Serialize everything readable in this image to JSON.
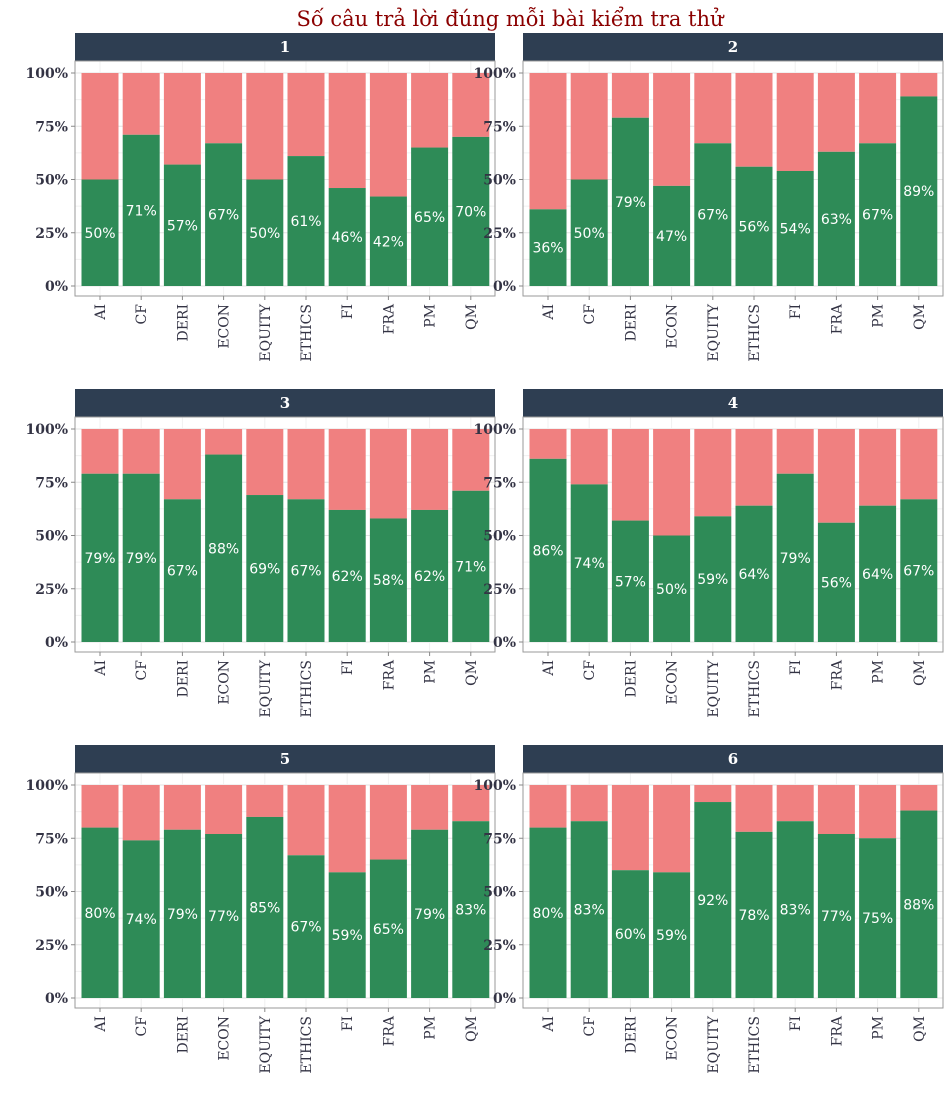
{
  "chart_data": {
    "type": "bar",
    "title": "Số câu trả lời đúng mỗi bài kiểm tra thử",
    "categories": [
      "AI",
      "CF",
      "DERI",
      "ECON",
      "EQUITY",
      "ETHICS",
      "FI",
      "FRA",
      "PM",
      "QM"
    ],
    "yticks": [
      "0%",
      "25%",
      "50%",
      "75%",
      "100%"
    ],
    "ylim": [
      0,
      100
    ],
    "colors": {
      "correct": "#2e8b57",
      "incorrect": "#f08080",
      "strip": "#2e3e52",
      "title": "#8b0000"
    },
    "panels": [
      {
        "label": "1",
        "values": [
          50,
          71,
          57,
          67,
          50,
          61,
          46,
          42,
          65,
          70
        ],
        "value_labels": [
          "50%",
          "71%",
          "57%",
          "67%",
          "50%",
          "61%",
          "46%",
          "42%",
          "65%",
          "70%"
        ]
      },
      {
        "label": "2",
        "values": [
          36,
          50,
          79,
          47,
          67,
          56,
          54,
          63,
          67,
          89
        ],
        "value_labels": [
          "36%",
          "50%",
          "79%",
          "47%",
          "67%",
          "56%",
          "54%",
          "63%",
          "67%",
          "89%"
        ]
      },
      {
        "label": "3",
        "values": [
          79,
          79,
          67,
          88,
          69,
          67,
          62,
          58,
          62,
          71
        ],
        "value_labels": [
          "79%",
          "79%",
          "67%",
          "88%",
          "69%",
          "67%",
          "62%",
          "58%",
          "62%",
          "71%"
        ]
      },
      {
        "label": "4",
        "values": [
          86,
          74,
          57,
          50,
          59,
          64,
          79,
          56,
          64,
          67
        ],
        "value_labels": [
          "86%",
          "74%",
          "57%",
          "50%",
          "59%",
          "64%",
          "79%",
          "56%",
          "64%",
          "67%"
        ]
      },
      {
        "label": "5",
        "values": [
          80,
          74,
          79,
          77,
          85,
          67,
          59,
          65,
          79,
          83
        ],
        "value_labels": [
          "80%",
          "74%",
          "79%",
          "77%",
          "85%",
          "67%",
          "59%",
          "65%",
          "79%",
          "83%"
        ]
      },
      {
        "label": "6",
        "values": [
          80,
          83,
          60,
          59,
          92,
          78,
          83,
          77,
          75,
          88
        ],
        "value_labels": [
          "80%",
          "83%",
          "60%",
          "59%",
          "92%",
          "78%",
          "83%",
          "77%",
          "75%",
          "88%"
        ]
      }
    ]
  }
}
